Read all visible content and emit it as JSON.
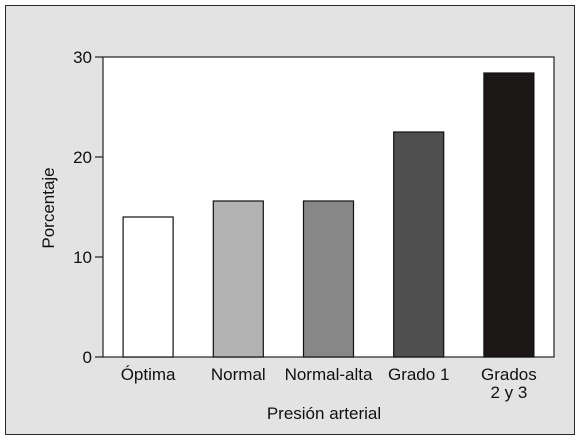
{
  "chart_data": {
    "type": "bar",
    "xlabel": "Presión arterial",
    "ylabel": "Porcentaje",
    "ylim": [
      0,
      30
    ],
    "yticks": [
      0,
      10,
      20,
      30
    ],
    "grid": false,
    "legend": "none",
    "categories": [
      "Óptima",
      "Normal",
      "Normal-alta",
      "Grado 1",
      "Grados\n2 y 3"
    ],
    "values": [
      14.0,
      15.6,
      15.6,
      22.5,
      28.4
    ],
    "bar_colors": [
      "#ffffff",
      "#b3b3b3",
      "#878787",
      "#4f4f4f",
      "#1b1717"
    ]
  }
}
